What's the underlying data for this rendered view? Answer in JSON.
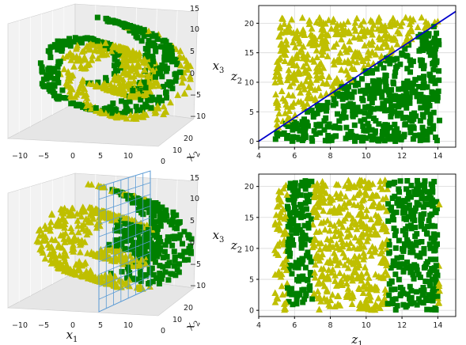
{
  "figure": {
    "type": "scatter-grid",
    "rows": 2,
    "cols": 2
  },
  "colors": {
    "square": "#008000",
    "triangle": "#bfbf00",
    "line": "#0000cc",
    "plane": "#5b9bd5",
    "grid": "#d9d9d9",
    "pane": "#f2f2f2"
  },
  "chart_data": [
    {
      "type": "scatter",
      "projection": "3d",
      "marker_square": "green squares",
      "marker_triangle": "yellow triangles",
      "description_of_data": "Swiss roll with classes split by z2 > z1 boundary",
      "xlabel": "",
      "ylabel_main": "x",
      "ylabel_sub": "2",
      "zlabel_main": "x",
      "zlabel_sub": "3",
      "x_ticks": [
        "−10",
        "−5",
        "0",
        "5",
        "10"
      ],
      "y_ticks": [
        "0",
        "10",
        "20"
      ],
      "z_ticks": [
        "15",
        "10",
        "5",
        "0",
        "−5",
        "−10"
      ],
      "xlim": [
        -11,
        14
      ],
      "ylim": [
        0,
        21
      ],
      "zlim": [
        -11,
        15
      ]
    },
    {
      "type": "scatter",
      "marker_square": "green squares",
      "marker_triangle": "yellow triangles",
      "xlabel": "",
      "ylabel_main": "z",
      "ylabel_sub": "2",
      "xlim": [
        4,
        15
      ],
      "ylim": [
        -1,
        23
      ],
      "x_ticks": [
        "4",
        "6",
        "8",
        "10",
        "12",
        "14"
      ],
      "y_ticks": [
        "0",
        "5",
        "10",
        "15",
        "20"
      ],
      "boundary_line": {
        "from": [
          4,
          0
        ],
        "to": [
          15,
          22
        ]
      },
      "grid": true
    },
    {
      "type": "scatter",
      "projection": "3d",
      "marker_square": "green squares",
      "marker_triangle": "yellow triangles",
      "xlabel_main": "x",
      "xlabel_sub": "1",
      "ylabel_main": "x",
      "ylabel_sub": "2",
      "zlabel_main": "x",
      "zlabel_sub": "3",
      "x_ticks": [
        "−10",
        "−5",
        "0",
        "5",
        "10"
      ],
      "y_ticks": [
        "0",
        "10",
        "20"
      ],
      "z_ticks": [
        "15",
        "10",
        "5",
        "0",
        "−5",
        "−10"
      ],
      "plane_x1": 5,
      "xlim": [
        -11,
        14
      ],
      "ylim": [
        0,
        21
      ],
      "zlim": [
        -11,
        15
      ]
    },
    {
      "type": "scatter",
      "marker_square": "green squares",
      "marker_triangle": "yellow triangles",
      "xlabel_main": "z",
      "xlabel_sub": "1",
      "ylabel_main": "z",
      "ylabel_sub": "2",
      "xlim": [
        4,
        15
      ],
      "ylim": [
        -1,
        22
      ],
      "x_ticks": [
        "4",
        "6",
        "8",
        "10",
        "12",
        "14"
      ],
      "y_ticks": [
        "0",
        "5",
        "10",
        "15",
        "20"
      ],
      "square_bands_z1": [
        [
          5.6,
          7.0
        ],
        [
          11.2,
          14.0
        ]
      ],
      "grid": true
    }
  ]
}
